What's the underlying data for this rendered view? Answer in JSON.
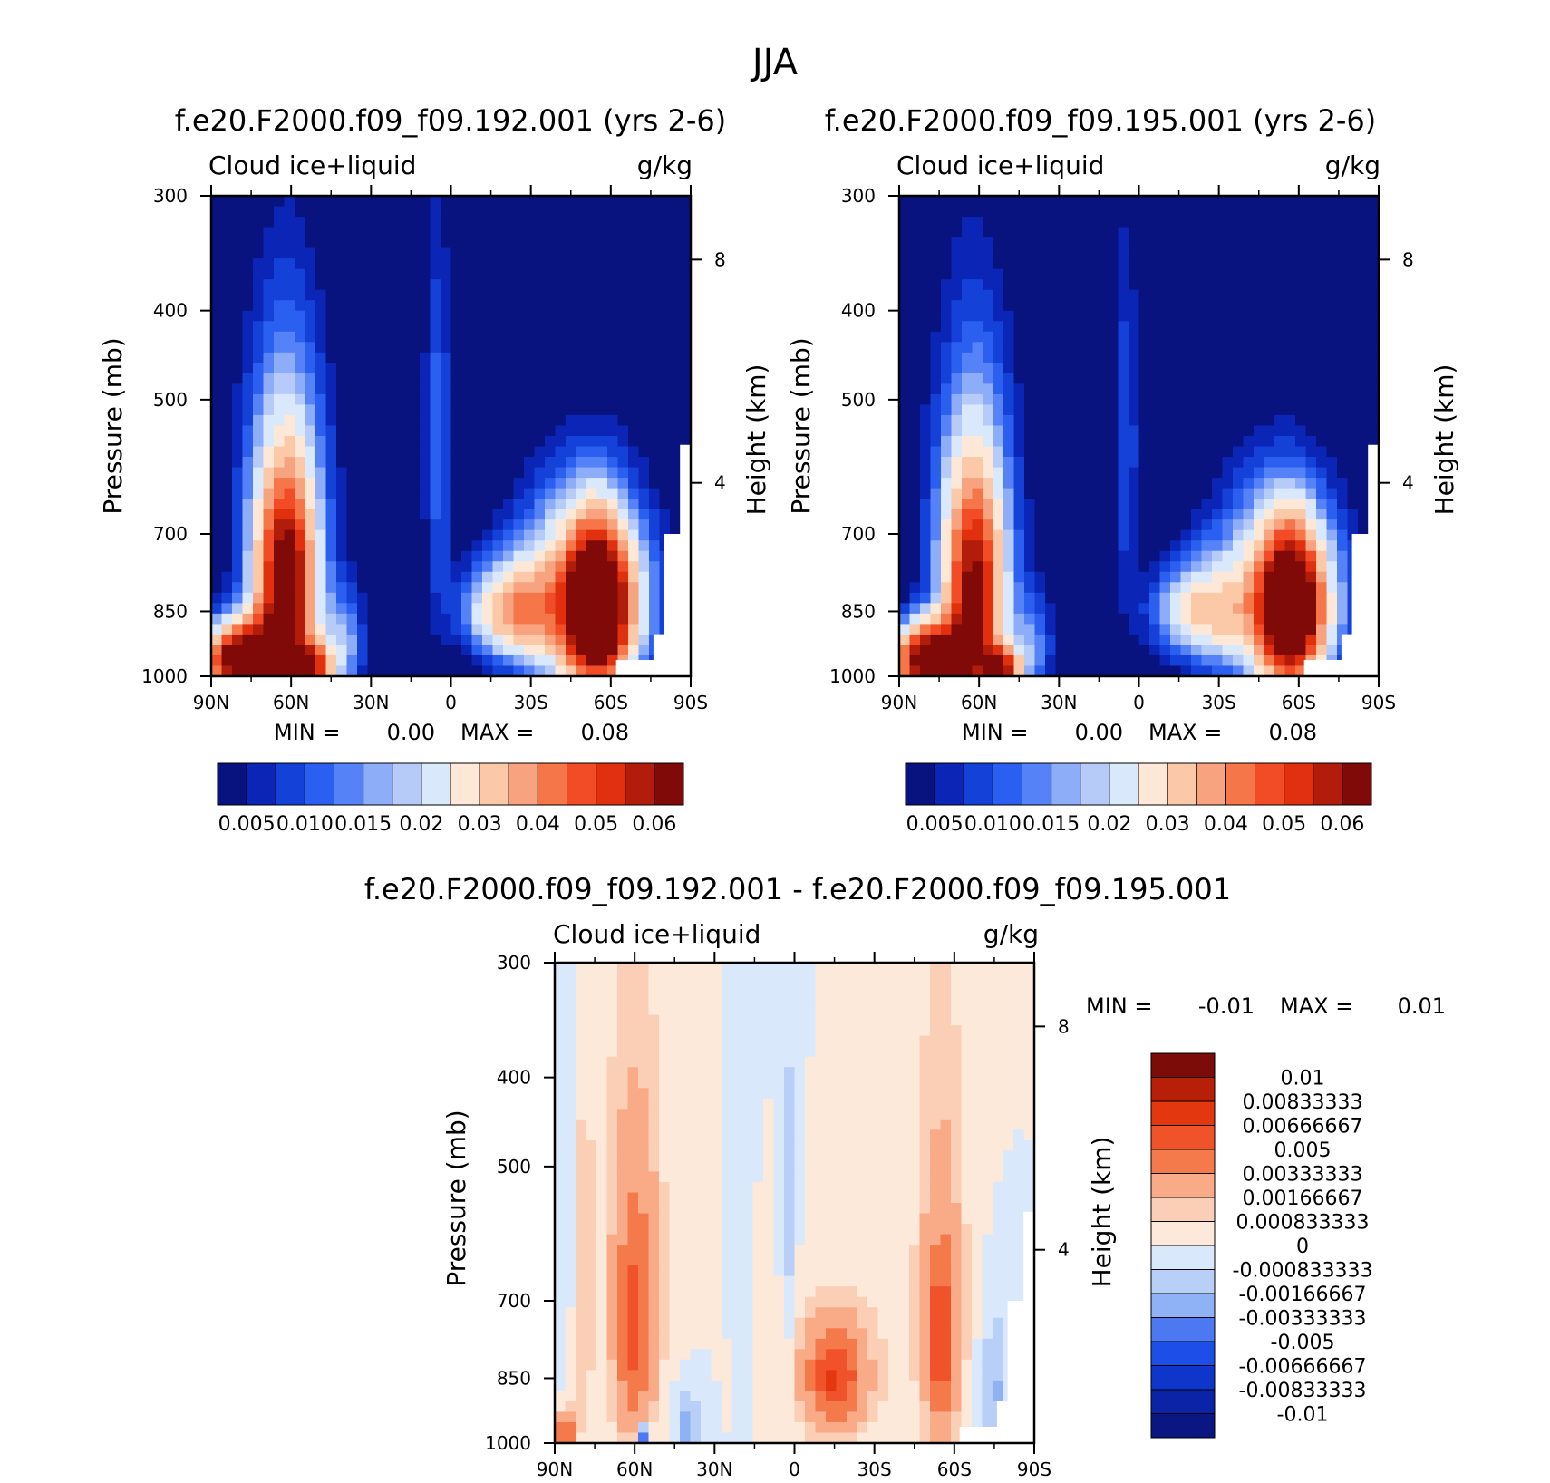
{
  "page_title": "JJA",
  "colors": {
    "abs_palette": [
      "#08137f",
      "#0b25b6",
      "#1442d9",
      "#2b5ff0",
      "#5582f7",
      "#8eadf8",
      "#b7cbf8",
      "#dae8fb",
      "#fde8d8",
      "#fbc8a8",
      "#f7a37f",
      "#f47649",
      "#f14c25",
      "#e0300d",
      "#b21c0a",
      "#7f0a08"
    ],
    "diff_palette": [
      "#0a1782",
      "#0b23a6",
      "#0f36ca",
      "#1e4ee8",
      "#4c78f2",
      "#8fb1f5",
      "#b8cff8",
      "#d9e8fb",
      "#fde9d9",
      "#fbcfb5",
      "#f9ab88",
      "#f47a4b",
      "#f0522a",
      "#e3380f",
      "#b81f09",
      "#7b0c08"
    ]
  },
  "chart_data": [
    {
      "type": "heatmap",
      "title": "f.e20.F2000.f09_f09.192.001 (yrs 2-6)",
      "left_label": "Cloud ice+liquid",
      "right_label": "g/kg",
      "ylabel": "Pressure (mb)",
      "ylabel_right": "Height (km)",
      "x_ticks": [
        "90N",
        "60N",
        "30N",
        "0",
        "30S",
        "60S",
        "90S"
      ],
      "y_ticks": [
        "300",
        "400",
        "500",
        "700",
        "850",
        "1000"
      ],
      "y_ticks_right": [
        "8",
        "4"
      ],
      "min_label": "MIN =",
      "min_value": "0.00",
      "max_label": "MAX =",
      "max_value": "0.08",
      "colorbar_labels": [
        "0.005",
        "0.010",
        "0.015",
        "0.02",
        "0.03",
        "0.04",
        "0.05",
        "0.06"
      ],
      "blobs": [
        {
          "lat": 78,
          "p": 960,
          "sx": 10,
          "sy": 60,
          "v": 0.075
        },
        {
          "lat": 62,
          "p": 820,
          "sx": 7,
          "sy": 150,
          "v": 0.05
        },
        {
          "lat": 52,
          "p": 980,
          "sx": 5,
          "sy": 40,
          "v": 0.045
        },
        {
          "lat": 62,
          "p": 700,
          "sx": 12,
          "sy": 220,
          "v": 0.025
        },
        {
          "lat": 40,
          "p": 930,
          "sx": 6,
          "sy": 90,
          "v": 0.015
        },
        {
          "lat": 5,
          "p": 560,
          "sx": 4,
          "sy": 200,
          "v": 0.012
        },
        {
          "lat": -22,
          "p": 850,
          "sx": 12,
          "sy": 70,
          "v": 0.03
        },
        {
          "lat": -55,
          "p": 850,
          "sx": 8,
          "sy": 110,
          "v": 0.07
        },
        {
          "lat": -50,
          "p": 820,
          "sx": 18,
          "sy": 150,
          "v": 0.035
        }
      ]
    },
    {
      "type": "heatmap",
      "title": "f.e20.F2000.f09_f09.195.001 (yrs 2-6)",
      "left_label": "Cloud ice+liquid",
      "right_label": "g/kg",
      "ylabel": "Pressure (mb)",
      "ylabel_right": "Height (km)",
      "x_ticks": [
        "90N",
        "60N",
        "30N",
        "0",
        "30S",
        "60S",
        "90S"
      ],
      "y_ticks": [
        "300",
        "400",
        "500",
        "700",
        "850",
        "1000"
      ],
      "y_ticks_right": [
        "8",
        "4"
      ],
      "min_label": "MIN =",
      "min_value": "0.00",
      "max_label": "MAX =",
      "max_value": "0.08",
      "colorbar_labels": [
        "0.005",
        "0.010",
        "0.015",
        "0.02",
        "0.03",
        "0.04",
        "0.05",
        "0.06"
      ],
      "blobs": [
        {
          "lat": 78,
          "p": 960,
          "sx": 10,
          "sy": 60,
          "v": 0.072
        },
        {
          "lat": 62,
          "p": 820,
          "sx": 7,
          "sy": 150,
          "v": 0.045
        },
        {
          "lat": 52,
          "p": 985,
          "sx": 5,
          "sy": 40,
          "v": 0.05
        },
        {
          "lat": 62,
          "p": 700,
          "sx": 12,
          "sy": 220,
          "v": 0.022
        },
        {
          "lat": 40,
          "p": 930,
          "sx": 6,
          "sy": 90,
          "v": 0.013
        },
        {
          "lat": 5,
          "p": 560,
          "sx": 4,
          "sy": 200,
          "v": 0.01
        },
        {
          "lat": -22,
          "p": 850,
          "sx": 12,
          "sy": 70,
          "v": 0.025
        },
        {
          "lat": -57,
          "p": 850,
          "sx": 8,
          "sy": 110,
          "v": 0.065
        },
        {
          "lat": -52,
          "p": 820,
          "sx": 18,
          "sy": 150,
          "v": 0.03
        }
      ]
    },
    {
      "type": "heatmap",
      "title": "f.e20.F2000.f09_f09.192.001 - f.e20.F2000.f09_f09.195.001",
      "left_label": "Cloud ice+liquid",
      "right_label": "g/kg",
      "ylabel": "Pressure (mb)",
      "ylabel_right": "Height (km)",
      "x_ticks": [
        "90N",
        "60N",
        "30N",
        "0",
        "30S",
        "60S",
        "90S"
      ],
      "y_ticks": [
        "300",
        "400",
        "500",
        "700",
        "850",
        "1000"
      ],
      "y_ticks_right": [
        "8",
        "4"
      ],
      "min_label": "MIN =",
      "min_value": "-0.01",
      "max_label": "MAX =",
      "max_value": "0.01",
      "colorbar_labels": [
        "0.01",
        "0.00833333",
        "0.00666667",
        "0.005",
        "0.00333333",
        "0.00166667",
        "0.000833333",
        "0",
        "-0.000833333",
        "-0.00166667",
        "-0.00333333",
        "-0.005",
        "-0.00666667",
        "-0.00833333",
        "-0.01"
      ],
      "blobs": [
        {
          "lat": 60,
          "p": 760,
          "sx": 5,
          "sy": 160,
          "v": 0.004
        },
        {
          "lat": 60,
          "p": 600,
          "sx": 8,
          "sy": 250,
          "v": 0.002
        },
        {
          "lat": 80,
          "p": 650,
          "sx": 3,
          "sy": 250,
          "v": 0.0018
        },
        {
          "lat": 86,
          "p": 985,
          "sx": 2,
          "sy": 40,
          "v": 0.007
        },
        {
          "lat": -15,
          "p": 850,
          "sx": 7,
          "sy": 70,
          "v": 0.005
        },
        {
          "lat": -15,
          "p": 830,
          "sx": 14,
          "sy": 110,
          "v": 0.002
        },
        {
          "lat": -55,
          "p": 780,
          "sx": 4,
          "sy": 120,
          "v": 0.005
        },
        {
          "lat": -55,
          "p": 620,
          "sx": 7,
          "sy": 260,
          "v": 0.002
        },
        {
          "lat": 40,
          "p": 960,
          "sx": 4,
          "sy": 60,
          "v": -0.002
        },
        {
          "lat": 57,
          "p": 990,
          "sx": 2,
          "sy": 25,
          "v": -0.006
        },
        {
          "lat": 2,
          "p": 600,
          "sx": 2,
          "sy": 250,
          "v": -0.0012
        },
        {
          "lat": 20,
          "p": 700,
          "sx": 2,
          "sy": 200,
          "v": -0.0011
        },
        {
          "lat": -75,
          "p": 880,
          "sx": 4,
          "sy": 120,
          "v": -0.0018
        },
        {
          "lat": 84,
          "p": 500,
          "sx": 3,
          "sy": 200,
          "v": -0.0012
        }
      ]
    }
  ]
}
